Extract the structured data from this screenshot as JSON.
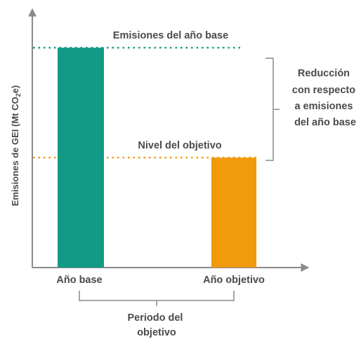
{
  "chart_data": {
    "type": "bar",
    "categories": [
      "Año base",
      "Año objetivo"
    ],
    "values": [
      100,
      50
    ],
    "ylim": [
      0,
      108
    ],
    "ylabel": "Emisiones de GEI (Mt CO",
    "ylabel_subscript": "2",
    "ylabel_suffix": "e)",
    "colors": [
      "#139a86",
      "#f09a0c"
    ],
    "reference_lines": [
      {
        "label": "Emisiones del año base",
        "value": 100,
        "color": "#139a86"
      },
      {
        "label": "Nivel del objetivo",
        "value": 50,
        "color": "#f09a0c"
      }
    ],
    "annotations": {
      "reduction": [
        "Reducción",
        "con respecto",
        "a emisiones",
        "del año base"
      ],
      "period": [
        "Periodo del",
        "objetivo"
      ]
    },
    "grid": false
  }
}
